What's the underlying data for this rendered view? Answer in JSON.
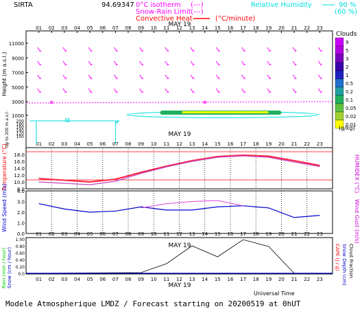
{
  "header": {
    "station": "SIRTA",
    "coords": "94.69347",
    "legend_freezing": "0°C isotherm",
    "legend_snow": "Snow-Rain Limit",
    "legend_conv": "Convective Heat",
    "legend_dashes": "(---)",
    "legend_unit": "(°C/minute)",
    "rh_label": "Relative Humidity",
    "rh_90": "90 %",
    "rh_60": "(60 %)"
  },
  "footer": {
    "title": "Modele Atmospherique LMDZ / Forecast starting on 20200519 at 0hUT",
    "universal_time": "Universal Time"
  },
  "colors": {
    "magenta": "#ff00ff",
    "cyan": "#00ffff",
    "red": "#ff0000",
    "blue": "#0000cc",
    "black": "#000000",
    "temp_line": "#ff2040",
    "humidex_line": "#c040c0",
    "gust_line": "#e040e0"
  },
  "chart_data": [
    {
      "type": "line",
      "title": "MAY 19",
      "panel": "Height / Clouds",
      "x_label_hours": [
        "01",
        "02",
        "03",
        "04",
        "05",
        "06",
        "07",
        "08",
        "09",
        "10",
        "11",
        "12",
        "13",
        "14",
        "15",
        "16",
        "17",
        "18",
        "19",
        "20",
        "21",
        "22",
        "23"
      ],
      "ylabel": "Height (m a.s.l.)",
      "ylabel_sub": "Up to 200 m a.s.l.",
      "y_ticks_upper": [
        1000,
        3000,
        5000,
        7000,
        9000,
        11000
      ],
      "y_ticks_lower": [
        100,
        120,
        140,
        160,
        180,
        200
      ],
      "wind_barbs": "magenta wind arrows at multiple heights for each hour",
      "freezing_level": {
        "hours": [
          1,
          23
        ],
        "values": [
          2700,
          2750
        ]
      },
      "low_cloud_band": {
        "hour_start": 10,
        "hour_end": 20,
        "height_low": 1600,
        "height_high": 2100
      },
      "colorbar": {
        "label": "Clouds",
        "unit": "(g/kg)",
        "ticks": [
          "9",
          "5",
          "3",
          "2",
          "1",
          "0.5",
          "0.2",
          "0.1",
          "0.05",
          "0.02",
          "0.01"
        ],
        "colors": [
          "#cc00ff",
          "#b300e0",
          "#7a00c0",
          "#3a00aa",
          "#2020c0",
          "#2070d0",
          "#20a0a0",
          "#20b060",
          "#60c040",
          "#a0d030",
          "#ffff00"
        ]
      }
    },
    {
      "type": "line",
      "title": "MAY 19",
      "panel": "Temperature / Humidex",
      "ylabel": "Temperature (°C)",
      "ylabel_right": "HUMIDEX (°C)",
      "ylim": [
        8.0,
        20.0
      ],
      "y_ticks": [
        "8.0",
        "10.0",
        "12.0",
        "14.0",
        "16.0",
        "18.0"
      ],
      "x_hours": [
        1,
        5,
        7,
        9,
        11,
        13,
        15,
        17,
        19,
        21,
        23
      ],
      "series": [
        {
          "name": "Temperature",
          "values": [
            11.0,
            10.0,
            10.8,
            12.8,
            14.6,
            16.2,
            17.4,
            17.8,
            17.5,
            16.2,
            14.8
          ]
        },
        {
          "name": "Humidex",
          "values": [
            10.0,
            9.2,
            10.2,
            12.5,
            14.4,
            16.0,
            17.2,
            17.6,
            17.2,
            15.8,
            14.5
          ]
        }
      ],
      "reference_lines": [
        10.6,
        18.8
      ]
    },
    {
      "type": "line",
      "title": "",
      "panel": "Wind",
      "ylabel": "Wind Speed (m/s)",
      "ylabel_right": "Wind Gust (m/s)",
      "ylim": [
        0.0,
        4.0
      ],
      "y_ticks": [
        "0.0",
        "1.0",
        "2.0",
        "3.0",
        "4.0"
      ],
      "x_hours": [
        1,
        3,
        5,
        7,
        9,
        11,
        13,
        15,
        17,
        19,
        21,
        23
      ],
      "series": [
        {
          "name": "Wind Speed",
          "values": [
            2.8,
            2.3,
            2.0,
            2.1,
            2.5,
            2.2,
            2.2,
            2.5,
            2.6,
            2.4,
            1.5,
            1.7
          ]
        },
        {
          "name": "Wind Gust",
          "values": [
            null,
            null,
            null,
            null,
            2.4,
            2.8,
            3.0,
            3.1,
            2.6,
            null,
            null,
            null
          ]
        }
      ]
    },
    {
      "type": "line",
      "title": "MAY 19",
      "panel": "Precipitation",
      "ylabel": "Rain (mm / hour)",
      "ylabel2": "Snow (cm / hour)",
      "ylabel_right": "CAPE (J / g)",
      "ylabel_right2": "Snow Depth (cm)",
      "ylabel_right3": "Cloud Fraction",
      "ylim": [
        0.0,
        1.0
      ],
      "y_ticks": [
        "0.0",
        "0.20",
        "0.40",
        "0.60",
        "0.80",
        "1.00"
      ],
      "x_hours": [
        1,
        9,
        11,
        13,
        15,
        17,
        19,
        21,
        23
      ],
      "series": [
        {
          "name": "Rain",
          "values": [
            0.0,
            0.02,
            0.28,
            0.8,
            0.48,
            0.98,
            0.78,
            0.0,
            0.0
          ]
        }
      ],
      "xlabel": "MAY 19"
    }
  ]
}
